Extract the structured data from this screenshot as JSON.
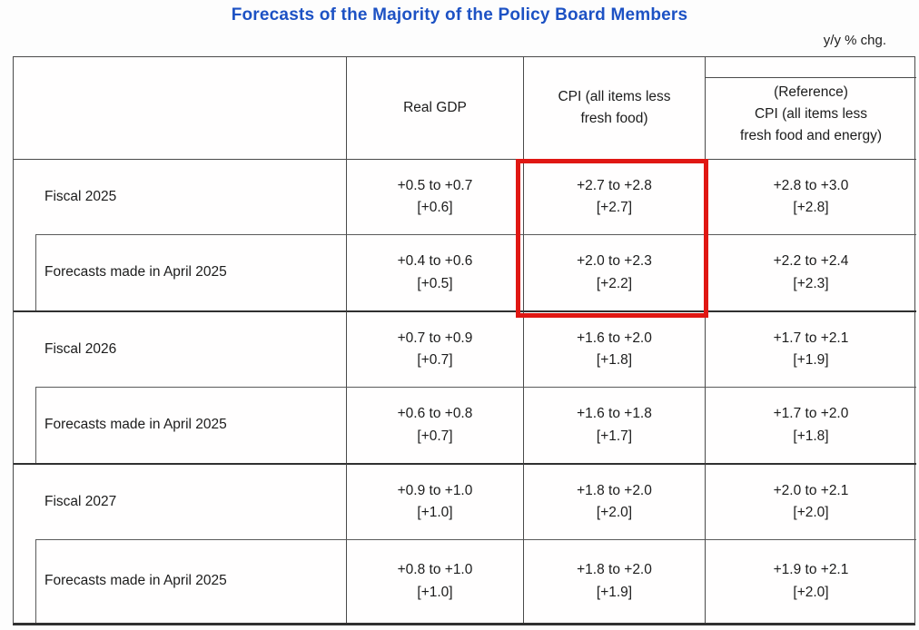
{
  "title": "Forecasts of the Majority of the Policy Board Members",
  "unit_label": "y/y % chg.",
  "title_color": "#1d52c4",
  "highlight_color": "#e01713",
  "highlight": {
    "description": "red box over CPI column for Fiscal 2025 rows"
  },
  "table": {
    "col_headers": {
      "gdp": "Real GDP",
      "cpi": "CPI (all items less\nfresh food)",
      "reference": "(Reference)\nCPI (all items less\nfresh food and energy)"
    },
    "rows": [
      {
        "label": "Fiscal 2025",
        "gdp": {
          "range": "+0.5 to +0.7",
          "median": "[+0.6]"
        },
        "cpi": {
          "range": "+2.7 to +2.8",
          "median": "[+2.7]"
        },
        "ref": {
          "range": "+2.8 to +3.0",
          "median": "[+2.8]"
        }
      },
      {
        "label": "Forecasts made in April 2025",
        "gdp": {
          "range": "+0.4 to +0.6",
          "median": "[+0.5]"
        },
        "cpi": {
          "range": "+2.0 to +2.3",
          "median": "[+2.2]"
        },
        "ref": {
          "range": "+2.2 to +2.4",
          "median": "[+2.3]"
        }
      },
      {
        "label": "Fiscal 2026",
        "gdp": {
          "range": "+0.7 to +0.9",
          "median": "[+0.7]"
        },
        "cpi": {
          "range": "+1.6 to +2.0",
          "median": "[+1.8]"
        },
        "ref": {
          "range": "+1.7 to +2.1",
          "median": "[+1.9]"
        }
      },
      {
        "label": "Forecasts made in April 2025",
        "gdp": {
          "range": "+0.6 to +0.8",
          "median": "[+0.7]"
        },
        "cpi": {
          "range": "+1.6 to +1.8",
          "median": "[+1.7]"
        },
        "ref": {
          "range": "+1.7 to +2.0",
          "median": "[+1.8]"
        }
      },
      {
        "label": "Fiscal 2027",
        "gdp": {
          "range": "+0.9 to +1.0",
          "median": "[+1.0]"
        },
        "cpi": {
          "range": "+1.8 to +2.0",
          "median": "[+2.0]"
        },
        "ref": {
          "range": "+2.0 to +2.1",
          "median": "[+2.0]"
        }
      },
      {
        "label": "Forecasts made in April 2025",
        "gdp": {
          "range": "+0.8 to +1.0",
          "median": "[+1.0]"
        },
        "cpi": {
          "range": "+1.8 to +2.0",
          "median": "[+1.9]"
        },
        "ref": {
          "range": "+1.9 to +2.1",
          "median": "[+2.0]"
        }
      }
    ]
  }
}
